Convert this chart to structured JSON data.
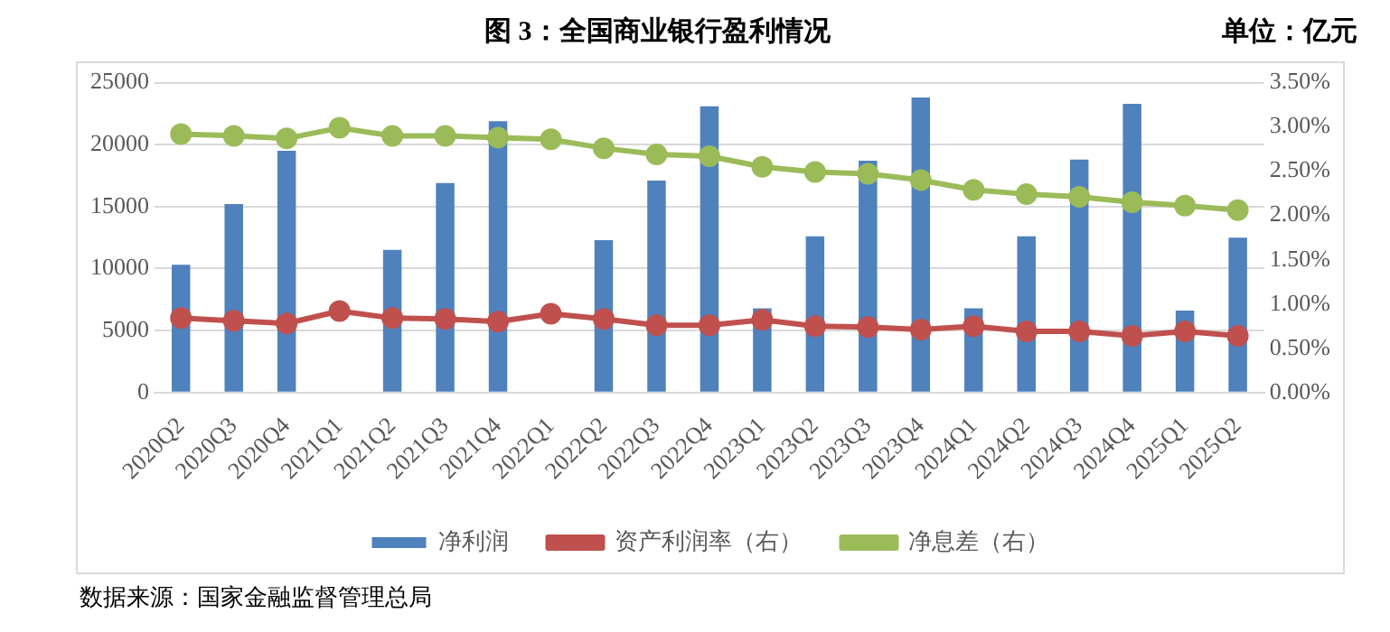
{
  "chart_data": {
    "type": "bar",
    "title": "图 3：全国商业银行盈利情况",
    "subtitle": "单位：亿元",
    "categories": [
      "2020Q2",
      "2020Q3",
      "2020Q4",
      "2021Q1",
      "2021Q2",
      "2021Q3",
      "2021Q4",
      "2022Q1",
      "2022Q2",
      "2022Q3",
      "2022Q4",
      "2023Q1",
      "2023Q2",
      "2023Q3",
      "2023Q4",
      "2024Q1",
      "2024Q2",
      "2024Q3",
      "2024Q4",
      "2025Q1",
      "2025Q2"
    ],
    "series": [
      {
        "name": "净利润",
        "color": "#4f81bd",
        "values": [
          10300,
          15200,
          19500,
          null,
          11500,
          16900,
          21900,
          null,
          12300,
          17100,
          23100,
          6800,
          12600,
          18700,
          23800,
          6800,
          12600,
          18800,
          23300,
          6600,
          12500
        ]
      },
      {
        "name": "资产利润率（右）",
        "type": "line",
        "axis": "y2",
        "color": "#c0504d",
        "values": [
          0.84,
          0.81,
          0.78,
          0.92,
          0.84,
          0.83,
          0.8,
          0.89,
          0.83,
          0.76,
          0.76,
          0.82,
          0.75,
          0.74,
          0.71,
          0.75,
          0.69,
          0.69,
          0.64,
          0.69,
          0.64
        ]
      },
      {
        "name": "净息差（右）",
        "type": "line",
        "axis": "y2",
        "color": "#9bbb59",
        "values": [
          2.92,
          2.9,
          2.87,
          2.99,
          2.9,
          2.9,
          2.88,
          2.86,
          2.76,
          2.69,
          2.67,
          2.55,
          2.49,
          2.47,
          2.4,
          2.29,
          2.24,
          2.21,
          2.15,
          2.11,
          2.06
        ]
      }
    ],
    "ylim": [
      0,
      25000
    ],
    "yticks": [
      0,
      5000,
      10000,
      15000,
      20000,
      25000
    ],
    "y2lim": [
      0,
      3.5
    ],
    "y2ticks": [
      {
        "value": 0,
        "label": "0.00%"
      },
      {
        "value": 0.5,
        "label": "0.50%"
      },
      {
        "value": 1,
        "label": "1.00%"
      },
      {
        "value": 1.5,
        "label": "1.50%"
      },
      {
        "value": 2,
        "label": "2.00%"
      },
      {
        "value": 2.5,
        "label": "2.50%"
      },
      {
        "value": 3,
        "label": "3.00%"
      },
      {
        "value": 3.5,
        "label": "3.50%"
      }
    ],
    "grid": "y",
    "legend": "bottom",
    "marker": "circle",
    "annotations": [
      "数据来源：国家金融监督管理总局"
    ]
  }
}
